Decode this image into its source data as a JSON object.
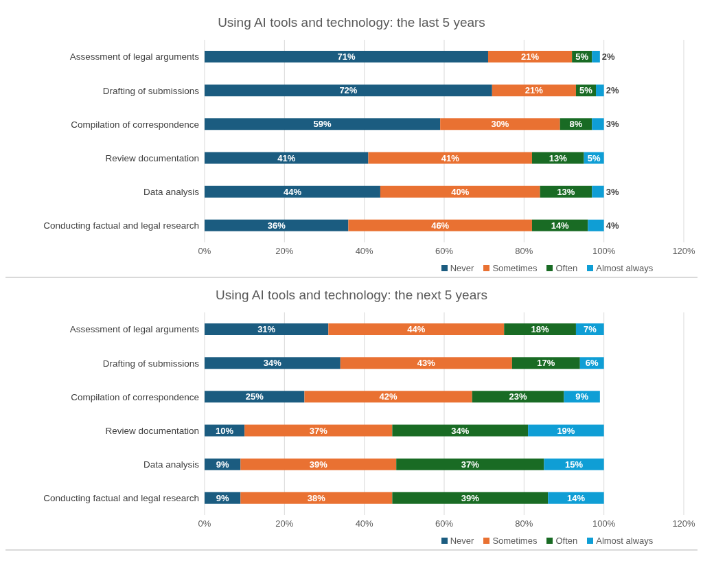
{
  "chart_data": [
    {
      "type": "bar",
      "title": "Using AI tools and technology: the last 5 years",
      "orientation": "horizontal",
      "stacked": true,
      "categories": [
        "Assessment of legal arguments",
        "Drafting of submissions",
        "Compilation of correspondence",
        "Review documentation",
        "Data analysis",
        "Conducting factual and legal research"
      ],
      "series": [
        {
          "name": "Never",
          "color": "#1b5c80",
          "values": [
            71,
            72,
            59,
            41,
            44,
            36
          ],
          "value_labels": [
            "71%",
            "72%",
            "59%",
            "41%",
            "44%",
            "36%"
          ]
        },
        {
          "name": "Sometimes",
          "color": "#e97132",
          "values": [
            21,
            21,
            30,
            41,
            40,
            46
          ],
          "value_labels": [
            "21%",
            "21%",
            "30%",
            "41%",
            "40%",
            "46%"
          ]
        },
        {
          "name": "Often",
          "color": "#196b24",
          "values": [
            5,
            5,
            8,
            13,
            13,
            14
          ],
          "value_labels": [
            "5%",
            "5%",
            "8%",
            "13%",
            "13%",
            "14%"
          ]
        },
        {
          "name": "Almost always",
          "color": "#0f9ed5",
          "values": [
            2,
            2,
            3,
            5,
            3,
            4
          ],
          "value_labels": [
            "2%",
            "2%",
            "3%",
            "5%",
            "3%",
            "4%"
          ]
        }
      ],
      "xlim": [
        0,
        120
      ],
      "xticks": [
        {
          "value": 0,
          "label": "0%"
        },
        {
          "value": 20,
          "label": "20%"
        },
        {
          "value": 40,
          "label": "40%"
        },
        {
          "value": 60,
          "label": "60%"
        },
        {
          "value": 80,
          "label": "80%"
        },
        {
          "value": 100,
          "label": "100%"
        },
        {
          "value": 120,
          "label": "120%"
        }
      ],
      "grid": "x",
      "legend": "bottom"
    },
    {
      "type": "bar",
      "title": "Using AI tools and technology: the next 5 years",
      "orientation": "horizontal",
      "stacked": true,
      "categories": [
        "Assessment of legal arguments",
        "Drafting of submissions",
        "Compilation of correspondence",
        "Review documentation",
        "Data analysis",
        "Conducting factual and legal research"
      ],
      "series": [
        {
          "name": "Never",
          "color": "#1b5c80",
          "values": [
            31,
            34,
            25,
            10,
            9,
            9
          ],
          "value_labels": [
            "31%",
            "34%",
            "25%",
            "10%",
            "9%",
            "9%"
          ]
        },
        {
          "name": "Sometimes",
          "color": "#e97132",
          "values": [
            44,
            43,
            42,
            37,
            39,
            38
          ],
          "value_labels": [
            "44%",
            "43%",
            "42%",
            "37%",
            "39%",
            "38%"
          ]
        },
        {
          "name": "Often",
          "color": "#196b24",
          "values": [
            18,
            17,
            23,
            34,
            37,
            39
          ],
          "value_labels": [
            "18%",
            "17%",
            "23%",
            "34%",
            "37%",
            "39%"
          ]
        },
        {
          "name": "Almost always",
          "color": "#0f9ed5",
          "values": [
            7,
            6,
            9,
            19,
            15,
            14
          ],
          "value_labels": [
            "7%",
            "6%",
            "9%",
            "19%",
            "15%",
            "14%"
          ]
        }
      ],
      "xlim": [
        0,
        120
      ],
      "xticks": [
        {
          "value": 0,
          "label": "0%"
        },
        {
          "value": 20,
          "label": "20%"
        },
        {
          "value": 40,
          "label": "40%"
        },
        {
          "value": 60,
          "label": "60%"
        },
        {
          "value": 80,
          "label": "80%"
        },
        {
          "value": 100,
          "label": "100%"
        },
        {
          "value": 120,
          "label": "120%"
        }
      ],
      "grid": "x",
      "legend": "bottom"
    }
  ]
}
